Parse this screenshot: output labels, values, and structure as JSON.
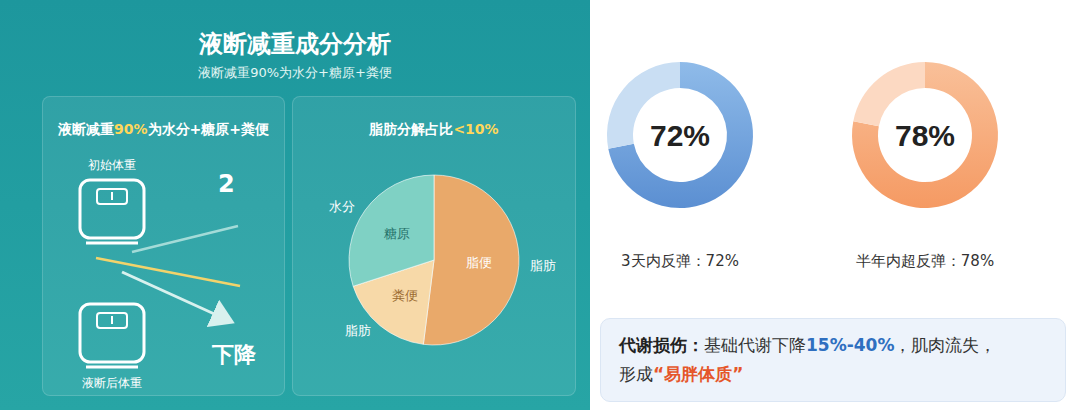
{
  "header": {
    "title": "液断减重成分分析",
    "subtitle": "液断减重90%为水分+糖原+粪便"
  },
  "weight_panel": {
    "title": {
      "text": "液断减重90%为水分+糖原+粪便",
      "highlight": "90%"
    },
    "before_label": "初始体重",
    "figure": "2",
    "after_label": "液断后体重",
    "change_label": "下降"
  },
  "chart_data": [
    {
      "type": "pie",
      "title": {
        "text": "脂肪分解占比<10%",
        "highlight": "<10%"
      },
      "categories": [
        "脂便",
        "粪便",
        "糖原"
      ],
      "outer_labels": [
        "脂肪",
        "脂肪",
        "水分"
      ],
      "values": [
        52,
        18,
        30
      ],
      "colors": [
        "#e9a96a",
        "#f7d9a8",
        "#7fd1c4"
      ]
    },
    {
      "type": "donut",
      "values": [
        72
      ],
      "value_labels": [
        "72%"
      ],
      "total": 100,
      "color": "#5b8fd2",
      "caption": "3天内反弹：72%"
    },
    {
      "type": "donut",
      "values": [
        78
      ],
      "value_labels": [
        "78%"
      ],
      "total": 100,
      "color": "#f59a63",
      "caption": "半年内超反弹：78%"
    }
  ],
  "note": {
    "lines": [
      [
        {
          "text": "代谢损伤：",
          "style": "bold"
        },
        {
          "text": "基础代谢下降",
          "style": "plain"
        },
        {
          "text": "15%-40%",
          "style": "accent"
        },
        {
          "text": "，肌肉流失，",
          "style": "plain"
        }
      ],
      [
        {
          "text": "形成",
          "style": "plain"
        },
        {
          "text": "“易胖体质”",
          "style": "warning"
        }
      ]
    ]
  }
}
